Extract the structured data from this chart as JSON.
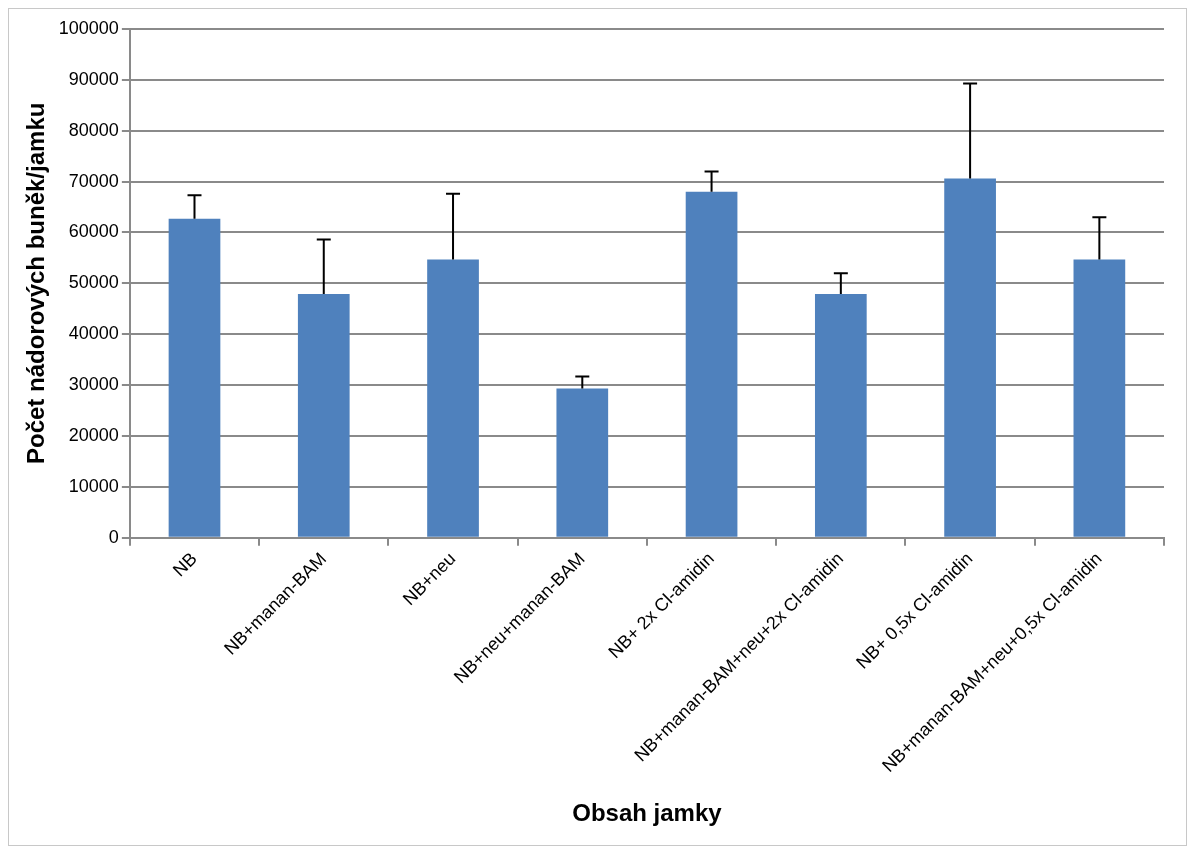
{
  "chart_data": {
    "type": "bar",
    "xlabel": "Obsah jamky",
    "ylabel": "Počet nádorových buněk/jamku",
    "categories": [
      "NB",
      "NB+manan-BAM",
      "NB+neu",
      "NB+neu+manan-BAM",
      "NB+ 2x Cl-amidin",
      "NB+manan-BAM+neu+2x Cl-amidin",
      "NB+ 0,5x Cl-amidin",
      "NB+manan-BAM+neu+0,5x Cl-amidin"
    ],
    "values": [
      62700,
      47900,
      54700,
      29300,
      68000,
      47900,
      70600,
      54700
    ],
    "errors": [
      [
        62700,
        67300
      ],
      [
        47900,
        58600
      ],
      [
        54700,
        67600
      ],
      [
        29300,
        31700
      ],
      [
        68000,
        72000
      ],
      [
        47900,
        52000
      ],
      [
        70600,
        89300
      ],
      [
        54700,
        63000
      ]
    ],
    "color": "#4f81bd",
    "ylim": [
      0,
      100000
    ],
    "yticks": [
      0,
      10000,
      20000,
      30000,
      40000,
      50000,
      60000,
      70000,
      80000,
      90000,
      100000
    ],
    "grid": "y",
    "legend": false
  }
}
